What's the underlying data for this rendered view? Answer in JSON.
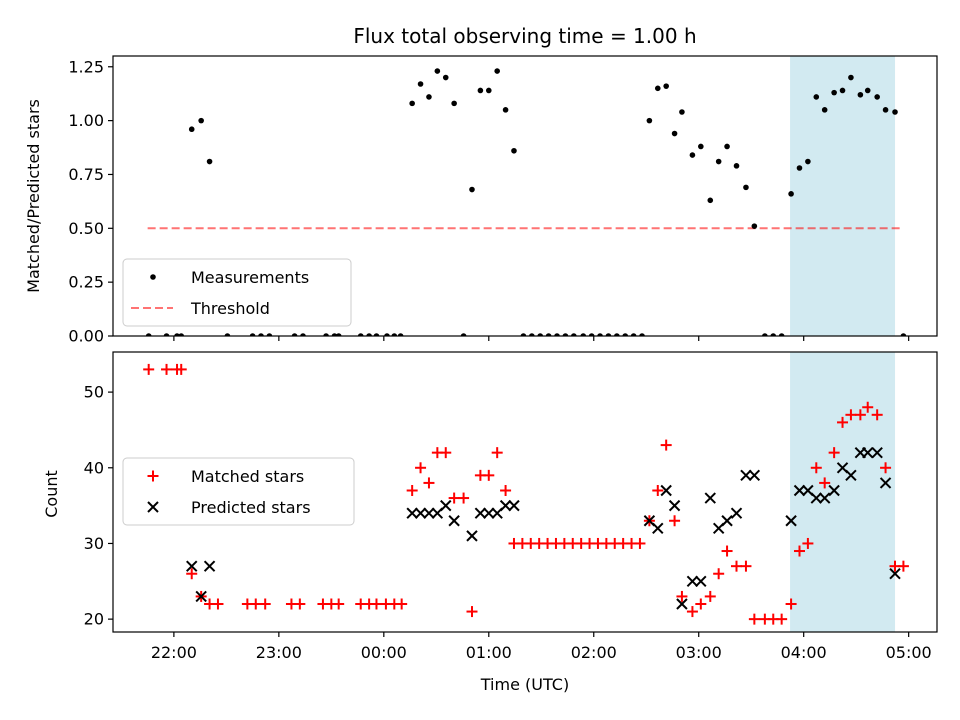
{
  "chart_data": [
    {
      "type": "scatter",
      "panel": "top",
      "title": "Flux total observing time = 1.00 h",
      "xlabel": "",
      "ylabel": "Matched/Predicted stars",
      "x_unit": "hours since 00:00 UTC",
      "xlim": [
        -2.58,
        5.27
      ],
      "ylim": [
        0,
        1.3
      ],
      "yticks": [
        0.0,
        0.25,
        0.5,
        0.75,
        1.0,
        1.25
      ],
      "ytick_labels": [
        "0.00",
        "0.25",
        "0.50",
        "0.75",
        "1.00",
        "1.25"
      ],
      "xticks": [
        -2,
        -1,
        0,
        1,
        2,
        3,
        4,
        5
      ],
      "xtick_labels": [
        "",
        "",
        "",
        "",
        "",
        "",
        "",
        ""
      ],
      "highlight_span": [
        3.87,
        4.87
      ],
      "highlight_color": "#add8e6",
      "legend": [
        "Measurements",
        "Threshold"
      ],
      "legend_loc": "lower left",
      "threshold": {
        "name": "Threshold",
        "value": 0.5,
        "x": [
          -2.25,
          4.95
        ],
        "color": "#ff0000",
        "style": "dashed"
      },
      "series": [
        {
          "name": "Measurements",
          "color": "#000000",
          "marker": "dot",
          "points": [
            [
              -2.24,
              0.0
            ],
            [
              -2.07,
              0.0
            ],
            [
              -1.97,
              0.0
            ],
            [
              -1.93,
              0.0
            ],
            [
              -1.83,
              0.96
            ],
            [
              -1.74,
              1.0
            ],
            [
              -1.66,
              0.81
            ],
            [
              -1.49,
              0.0
            ],
            [
              -1.25,
              0.0
            ],
            [
              -1.17,
              0.0
            ],
            [
              -1.09,
              0.0
            ],
            [
              -0.85,
              0.0
            ],
            [
              -0.77,
              0.0
            ],
            [
              -0.55,
              0.0
            ],
            [
              -0.47,
              0.0
            ],
            [
              -0.43,
              0.0
            ],
            [
              -0.22,
              0.0
            ],
            [
              -0.14,
              0.0
            ],
            [
              -0.07,
              0.0
            ],
            [
              0.03,
              0.0
            ],
            [
              0.1,
              0.0
            ],
            [
              0.16,
              0.0
            ],
            [
              0.27,
              1.08
            ],
            [
              0.35,
              1.17
            ],
            [
              0.43,
              1.11
            ],
            [
              0.51,
              1.23
            ],
            [
              0.59,
              1.2
            ],
            [
              0.67,
              1.08
            ],
            [
              0.76,
              0.0
            ],
            [
              0.84,
              0.68
            ],
            [
              0.92,
              1.14
            ],
            [
              1.0,
              1.14
            ],
            [
              1.08,
              1.23
            ],
            [
              1.16,
              1.05
            ],
            [
              1.24,
              0.86
            ],
            [
              1.33,
              0.0
            ],
            [
              1.41,
              0.0
            ],
            [
              1.49,
              0.0
            ],
            [
              1.57,
              0.0
            ],
            [
              1.65,
              0.0
            ],
            [
              1.73,
              0.0
            ],
            [
              1.81,
              0.0
            ],
            [
              1.9,
              0.0
            ],
            [
              1.98,
              0.0
            ],
            [
              2.06,
              0.0
            ],
            [
              2.14,
              0.0
            ],
            [
              2.22,
              0.0
            ],
            [
              2.3,
              0.0
            ],
            [
              2.38,
              0.0
            ],
            [
              2.46,
              0.0
            ],
            [
              2.53,
              1.0
            ],
            [
              2.61,
              1.15
            ],
            [
              2.69,
              1.16
            ],
            [
              2.77,
              0.94
            ],
            [
              2.84,
              1.04
            ],
            [
              2.94,
              0.84
            ],
            [
              3.02,
              0.88
            ],
            [
              3.11,
              0.63
            ],
            [
              3.19,
              0.81
            ],
            [
              3.27,
              0.88
            ],
            [
              3.36,
              0.79
            ],
            [
              3.45,
              0.69
            ],
            [
              3.53,
              0.51
            ],
            [
              3.63,
              0.0
            ],
            [
              3.71,
              0.0
            ],
            [
              3.79,
              0.0
            ],
            [
              3.88,
              0.66
            ],
            [
              3.96,
              0.78
            ],
            [
              4.04,
              0.81
            ],
            [
              4.12,
              1.11
            ],
            [
              4.2,
              1.05
            ],
            [
              4.29,
              1.13
            ],
            [
              4.37,
              1.14
            ],
            [
              4.45,
              1.2
            ],
            [
              4.54,
              1.12
            ],
            [
              4.61,
              1.14
            ],
            [
              4.7,
              1.11
            ],
            [
              4.78,
              1.05
            ],
            [
              4.87,
              1.04
            ],
            [
              4.95,
              0.0
            ]
          ]
        }
      ]
    },
    {
      "type": "scatter",
      "panel": "bottom",
      "title": "",
      "xlabel": "Time (UTC)",
      "ylabel": "Count",
      "x_unit": "hours since 00:00 UTC",
      "xlim": [
        -2.58,
        5.27
      ],
      "ylim": [
        18.3,
        55.3
      ],
      "yticks": [
        20,
        30,
        40,
        50
      ],
      "ytick_labels": [
        "20",
        "30",
        "40",
        "50"
      ],
      "xticks": [
        -2,
        -1,
        0,
        1,
        2,
        3,
        4,
        5
      ],
      "xtick_labels": [
        "22:00",
        "23:00",
        "00:00",
        "01:00",
        "02:00",
        "03:00",
        "04:00",
        "05:00"
      ],
      "highlight_span": [
        3.87,
        4.87
      ],
      "highlight_color": "#add8e6",
      "legend": [
        "Matched stars",
        "Predicted stars"
      ],
      "legend_loc": "center left",
      "series": [
        {
          "name": "Matched stars",
          "color": "#ff0000",
          "marker": "plus",
          "points": [
            [
              -2.24,
              53
            ],
            [
              -2.07,
              53
            ],
            [
              -1.97,
              53
            ],
            [
              -1.93,
              53
            ],
            [
              -1.83,
              26
            ],
            [
              -1.74,
              23
            ],
            [
              -1.66,
              22
            ],
            [
              -1.58,
              22
            ],
            [
              -1.3,
              22
            ],
            [
              -1.22,
              22
            ],
            [
              -1.13,
              22
            ],
            [
              -0.88,
              22
            ],
            [
              -0.8,
              22
            ],
            [
              -0.58,
              22
            ],
            [
              -0.5,
              22
            ],
            [
              -0.43,
              22
            ],
            [
              -0.22,
              22
            ],
            [
              -0.14,
              22
            ],
            [
              -0.07,
              22
            ],
            [
              0.02,
              22
            ],
            [
              0.1,
              22
            ],
            [
              0.17,
              22
            ],
            [
              0.27,
              37
            ],
            [
              0.35,
              40
            ],
            [
              0.43,
              38
            ],
            [
              0.51,
              42
            ],
            [
              0.59,
              42
            ],
            [
              0.67,
              36
            ],
            [
              0.76,
              36
            ],
            [
              0.84,
              21
            ],
            [
              0.92,
              39
            ],
            [
              1.0,
              39
            ],
            [
              1.08,
              42
            ],
            [
              1.16,
              37
            ],
            [
              1.24,
              30
            ],
            [
              1.32,
              30
            ],
            [
              1.4,
              30
            ],
            [
              1.48,
              30
            ],
            [
              1.56,
              30
            ],
            [
              1.64,
              30
            ],
            [
              1.72,
              30
            ],
            [
              1.8,
              30
            ],
            [
              1.88,
              30
            ],
            [
              1.96,
              30
            ],
            [
              2.04,
              30
            ],
            [
              2.12,
              30
            ],
            [
              2.2,
              30
            ],
            [
              2.28,
              30
            ],
            [
              2.36,
              30
            ],
            [
              2.44,
              30
            ],
            [
              2.53,
              33
            ],
            [
              2.61,
              37
            ],
            [
              2.69,
              43
            ],
            [
              2.77,
              33
            ],
            [
              2.84,
              23
            ],
            [
              2.94,
              21
            ],
            [
              3.02,
              22
            ],
            [
              3.11,
              23
            ],
            [
              3.19,
              26
            ],
            [
              3.27,
              29
            ],
            [
              3.36,
              27
            ],
            [
              3.45,
              27
            ],
            [
              3.53,
              20
            ],
            [
              3.63,
              20
            ],
            [
              3.71,
              20
            ],
            [
              3.79,
              20
            ],
            [
              3.88,
              22
            ],
            [
              3.96,
              29
            ],
            [
              4.04,
              30
            ],
            [
              4.12,
              40
            ],
            [
              4.2,
              38
            ],
            [
              4.29,
              42
            ],
            [
              4.37,
              46
            ],
            [
              4.45,
              47
            ],
            [
              4.54,
              47
            ],
            [
              4.61,
              48
            ],
            [
              4.7,
              47
            ],
            [
              4.78,
              40
            ],
            [
              4.87,
              27
            ],
            [
              4.95,
              27
            ]
          ]
        },
        {
          "name": "Predicted stars",
          "color": "#000000",
          "marker": "x",
          "points": [
            [
              -1.83,
              27
            ],
            [
              -1.74,
              23
            ],
            [
              -1.66,
              27
            ],
            [
              0.27,
              34
            ],
            [
              0.35,
              34
            ],
            [
              0.43,
              34
            ],
            [
              0.51,
              34
            ],
            [
              0.59,
              35
            ],
            [
              0.67,
              33
            ],
            [
              0.84,
              31
            ],
            [
              0.92,
              34
            ],
            [
              1.0,
              34
            ],
            [
              1.08,
              34
            ],
            [
              1.16,
              35
            ],
            [
              1.24,
              35
            ],
            [
              2.53,
              33
            ],
            [
              2.61,
              32
            ],
            [
              2.69,
              37
            ],
            [
              2.77,
              35
            ],
            [
              2.84,
              22
            ],
            [
              2.94,
              25
            ],
            [
              3.02,
              25
            ],
            [
              3.11,
              36
            ],
            [
              3.19,
              32
            ],
            [
              3.27,
              33
            ],
            [
              3.36,
              34
            ],
            [
              3.45,
              39
            ],
            [
              3.53,
              39
            ],
            [
              3.88,
              33
            ],
            [
              3.96,
              37
            ],
            [
              4.04,
              37
            ],
            [
              4.12,
              36
            ],
            [
              4.2,
              36
            ],
            [
              4.29,
              37
            ],
            [
              4.37,
              40
            ],
            [
              4.45,
              39
            ],
            [
              4.54,
              42
            ],
            [
              4.61,
              42
            ],
            [
              4.7,
              42
            ],
            [
              4.78,
              38
            ],
            [
              4.87,
              26
            ]
          ]
        }
      ]
    }
  ]
}
